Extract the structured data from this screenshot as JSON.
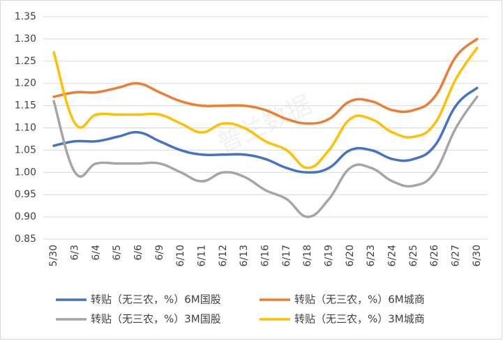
{
  "chart_data": {
    "type": "line",
    "watermark": "普兰数据",
    "categories": [
      "5/30",
      "6/3",
      "6/4",
      "6/5",
      "6/6",
      "6/9",
      "6/10",
      "6/11",
      "6/12",
      "6/13",
      "6/16",
      "6/17",
      "6/18",
      "6/19",
      "6/20",
      "6/23",
      "6/24",
      "6/25",
      "6/26",
      "6/27",
      "6/30"
    ],
    "series": [
      {
        "name": "转贴（无三农，%）6M国股",
        "color": "#4472c4",
        "values": [
          1.06,
          1.07,
          1.07,
          1.08,
          1.09,
          1.07,
          1.05,
          1.04,
          1.04,
          1.04,
          1.03,
          1.01,
          1.0,
          1.01,
          1.05,
          1.05,
          1.03,
          1.03,
          1.06,
          1.15,
          1.19
        ]
      },
      {
        "name": "转贴（无三农，%）6M城商",
        "color": "#ed7d31",
        "values": [
          1.17,
          1.18,
          1.18,
          1.19,
          1.2,
          1.18,
          1.16,
          1.15,
          1.15,
          1.15,
          1.14,
          1.12,
          1.11,
          1.12,
          1.16,
          1.16,
          1.14,
          1.14,
          1.17,
          1.26,
          1.3
        ]
      },
      {
        "name": "转贴（无三农，%）3M国股",
        "color": "#a5a5a5",
        "values": [
          1.16,
          1.0,
          1.02,
          1.02,
          1.02,
          1.02,
          1.0,
          0.98,
          1.0,
          0.99,
          0.96,
          0.94,
          0.9,
          0.94,
          1.01,
          1.01,
          0.98,
          0.97,
          1.0,
          1.1,
          1.17
        ]
      },
      {
        "name": "转贴（无三农，%）3M城商",
        "color": "#ffc000",
        "values": [
          1.27,
          1.11,
          1.13,
          1.13,
          1.13,
          1.13,
          1.11,
          1.09,
          1.11,
          1.1,
          1.07,
          1.05,
          1.01,
          1.05,
          1.12,
          1.12,
          1.09,
          1.08,
          1.11,
          1.21,
          1.28
        ]
      }
    ],
    "ylim": [
      0.85,
      1.35
    ],
    "yticks": [
      0.85,
      {
        "value": 0.9,
        "label": "0.90"
      },
      0.95,
      {
        "value": 1.0,
        "label": "1.00"
      },
      1.05,
      {
        "value": 1.1,
        "label": "1.10"
      },
      1.15,
      {
        "value": 1.2,
        "label": "1.20"
      },
      1.25,
      {
        "value": 1.3,
        "label": "1.30"
      },
      1.35
    ],
    "grid": true
  }
}
